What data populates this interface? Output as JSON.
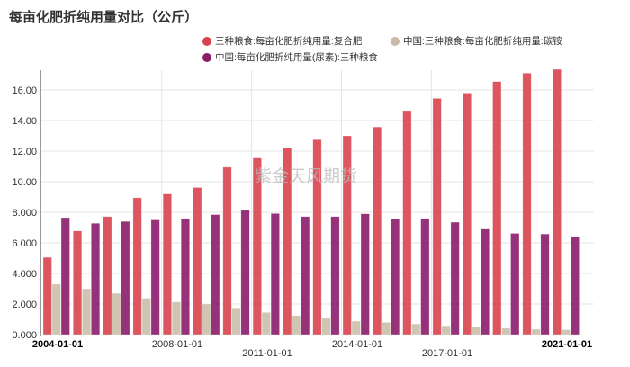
{
  "header": {
    "title": "每亩化肥折纯用量对比（公斤）"
  },
  "legend": [
    {
      "label": "三种粮食:每亩化肥折纯用量:复合肥",
      "color": "#d9434d"
    },
    {
      "label": "中国:三种粮食:每亩化肥折纯用量:碳铵",
      "color": "#c8baa5"
    },
    {
      "label": "中国:每亩化肥折纯用量(尿素):三种粮食",
      "color": "#8b1c6a"
    }
  ],
  "watermark": "紫金天风期货",
  "chart_data": {
    "type": "bar",
    "title": "每亩化肥折纯用量对比（公斤）",
    "xlabel": "",
    "ylabel": "",
    "ylim": [
      0,
      17.5
    ],
    "grid": true,
    "legend_position": "top-right",
    "categories": [
      "2004",
      "2005",
      "2006",
      "2007",
      "2008",
      "2009",
      "2010",
      "2011",
      "2012",
      "2013",
      "2014",
      "2015",
      "2016",
      "2017",
      "2018",
      "2019",
      "2020",
      "2021"
    ],
    "x_tick_labels": [
      "2004-01-01",
      "2008-01-01",
      "2011-01-01",
      "2014-01-01",
      "2017-01-01",
      "2021-01-01"
    ],
    "y_tick_labels": [
      "0.000",
      "2.000",
      "4.000",
      "6.000",
      "8.000",
      "10.00",
      "12.00",
      "14.00",
      "16.00"
    ],
    "series": [
      {
        "name": "三种粮食:每亩化肥折纯用量:复合肥",
        "color": "#d9434d",
        "values": [
          5.05,
          6.78,
          7.72,
          8.95,
          9.2,
          9.62,
          10.95,
          11.55,
          12.2,
          12.75,
          13.0,
          13.58,
          14.65,
          15.45,
          15.8,
          16.55,
          17.1,
          17.35
        ]
      },
      {
        "name": "中国:三种粮食:每亩化肥折纯用量:碳铵",
        "color": "#c8baa5",
        "values": [
          3.3,
          3.0,
          2.7,
          2.38,
          2.13,
          2.0,
          1.75,
          1.45,
          1.25,
          1.12,
          0.88,
          0.8,
          0.7,
          0.58,
          0.52,
          0.42,
          0.35,
          0.32
        ]
      },
      {
        "name": "中国:每亩化肥折纯用量(尿素):三种粮食",
        "color": "#8b1c6a",
        "values": [
          7.65,
          7.28,
          7.4,
          7.5,
          7.6,
          7.85,
          8.13,
          7.92,
          7.72,
          7.72,
          7.9,
          7.58,
          7.6,
          7.35,
          6.9,
          6.62,
          6.58,
          6.42
        ]
      }
    ]
  }
}
